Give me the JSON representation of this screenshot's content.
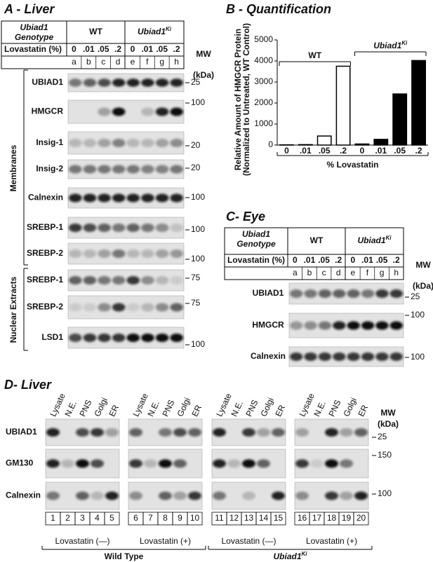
{
  "panel_a": {
    "title": "A - Liver",
    "genotype_label": [
      "Ubiad1",
      "Genotype"
    ],
    "genotypes": [
      {
        "base": "WT"
      },
      {
        "base": "Ubiad1",
        "sup": "Ki"
      }
    ],
    "lovastatin_label": "Lovastatin (%)",
    "doses": [
      "0",
      ".01",
      ".05",
      ".2"
    ],
    "lanes": [
      "a",
      "b",
      "c",
      "d",
      "e",
      "f",
      "g",
      "h"
    ],
    "mw_label": [
      "MW",
      "(kDa)"
    ],
    "membranes_label": "Membranes",
    "nuclear_label": "Nuclear Extracts",
    "membrane_rows": [
      {
        "label": "UBIAD1",
        "mw": 25
      },
      {
        "label": "HMGCR",
        "mw": 100
      },
      {
        "label": "Insig-1",
        "mw": 20
      },
      {
        "label": "Insig-2",
        "mw": 20
      },
      {
        "label": "Calnexin",
        "mw": 100
      },
      {
        "label": "SREBP-1",
        "mw": 100
      },
      {
        "label": "SREBP-2",
        "mw": 100
      }
    ],
    "nuclear_rows": [
      {
        "label": "SREBP-1",
        "mw": 75
      },
      {
        "label": "SREBP-2",
        "mw": 75
      },
      {
        "label": "LSD1",
        "mw": 100
      }
    ]
  },
  "chart_data": {
    "type": "bar",
    "title": "B - Quantification",
    "y_label": [
      "Relative Amount of HMGCR Protein",
      "(Normalized to Untreated, WT Control)"
    ],
    "x_label": "% Lovastatin",
    "categories": [
      "0",
      ".01",
      ".05",
      ".2",
      "0",
      ".01",
      ".05",
      ".2"
    ],
    "series": [
      {
        "name": "WT",
        "color": "#ffffff",
        "values": [
          10,
          20,
          430,
          3750,
          null,
          null,
          null,
          null
        ]
      },
      {
        "name": "Ubiad1",
        "name_superscript": "Ki",
        "color": "#000000",
        "values": [
          null,
          null,
          null,
          null,
          50,
          270,
          2430,
          4020
        ]
      }
    ],
    "ylim": [
      0,
      5000
    ],
    "yticks": [
      0,
      1000,
      2000,
      3000,
      4000,
      5000
    ]
  },
  "panel_c": {
    "title": "C- Eye",
    "genotype_label": [
      "Ubiad1",
      "Genotype"
    ],
    "genotypes": [
      {
        "base": "WT"
      },
      {
        "base": "Ubiad1",
        "sup": "Ki"
      }
    ],
    "lovastatin_label": "Lovastatin (%)",
    "doses": [
      "0",
      ".01",
      ".05",
      ".2"
    ],
    "lanes": [
      "a",
      "b",
      "c",
      "d",
      "e",
      "f",
      "g",
      "h"
    ],
    "mw_label": [
      "MW",
      "(kDa)"
    ],
    "rows": [
      {
        "label": "UBIAD1",
        "mw": 25
      },
      {
        "label": "HMGCR",
        "mw": 100
      },
      {
        "label": "Calnexin",
        "mw": 100
      }
    ]
  },
  "panel_d": {
    "title": "D- Liver",
    "lane_labels": [
      "Lysate",
      "N.E.",
      "PNS",
      "Golgi",
      "ER"
    ],
    "mw_label": [
      "MW",
      "(kDa)"
    ],
    "rows": [
      {
        "label": "UBIAD1",
        "mw": 25
      },
      {
        "label": "GM130",
        "mw": 150
      },
      {
        "label": "Calnexin",
        "mw": 100
      }
    ],
    "groups": [
      {
        "treatment": "Lovastatin (—)",
        "lanes": [
          1,
          2,
          3,
          4,
          5
        ]
      },
      {
        "treatment": "Lovastatin (+)",
        "lanes": [
          6,
          7,
          8,
          9,
          10
        ]
      },
      {
        "treatment": "Lovastatin (—)",
        "lanes": [
          11,
          12,
          13,
          14,
          15
        ]
      },
      {
        "treatment": "Lovastatin (+)",
        "lanes": [
          16,
          17,
          18,
          19,
          20
        ]
      }
    ],
    "genotypes": [
      {
        "base": "Wild Type"
      },
      {
        "base": "Ubiad1",
        "sup": "Ki"
      }
    ]
  }
}
